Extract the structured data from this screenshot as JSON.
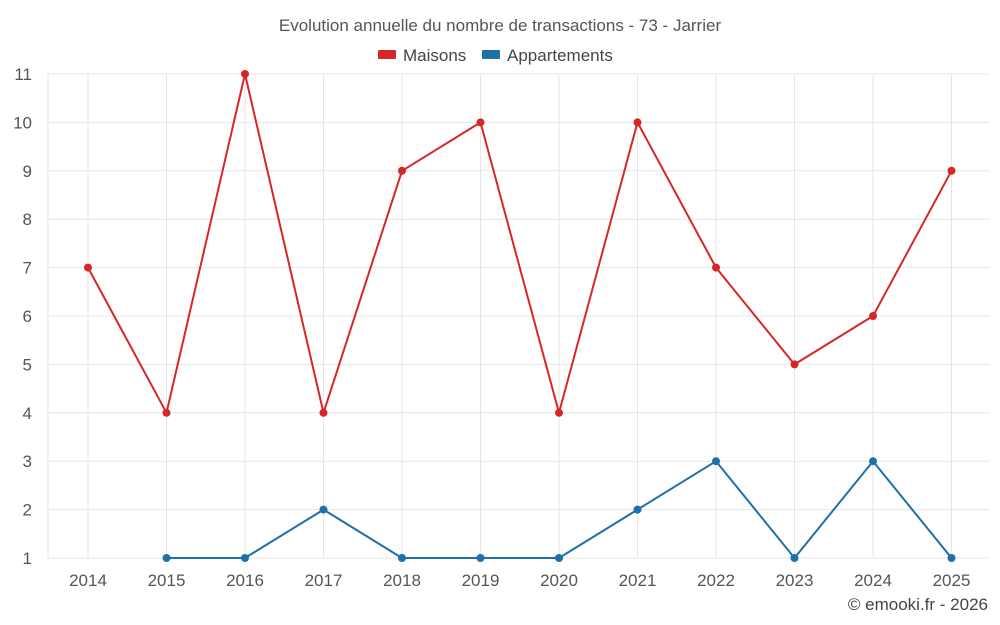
{
  "chart_data": {
    "type": "line",
    "title": "Evolution annuelle du nombre de transactions - 73 - Jarrier",
    "categories": [
      "2014",
      "2015",
      "2016",
      "2017",
      "2018",
      "2019",
      "2020",
      "2021",
      "2022",
      "2023",
      "2024",
      "2025"
    ],
    "series": [
      {
        "name": "Maisons",
        "color": "#d62728",
        "values": [
          7,
          4,
          11,
          4,
          9,
          10,
          4,
          10,
          7,
          5,
          6,
          9
        ]
      },
      {
        "name": "Appartements",
        "color": "#1f6fa8",
        "values": [
          null,
          1,
          1,
          2,
          1,
          1,
          1,
          2,
          3,
          1,
          3,
          1
        ]
      }
    ],
    "ylim": [
      1,
      11
    ],
    "yticks": [
      1,
      2,
      3,
      4,
      5,
      6,
      7,
      8,
      9,
      10,
      11
    ],
    "grid": true,
    "legend": "top-center",
    "credit": "© emooki.fr - 2026"
  }
}
